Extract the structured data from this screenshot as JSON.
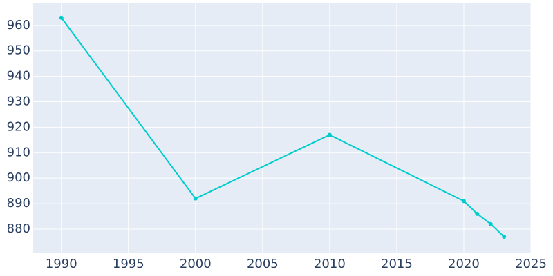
{
  "chart_data": {
    "type": "line",
    "x": [
      1990,
      2000,
      2010,
      2020,
      2021,
      2022,
      2023
    ],
    "series": [
      {
        "color": "#00cccc",
        "values": [
          963,
          892,
          917,
          891,
          886,
          882,
          877
        ]
      }
    ],
    "xlim": [
      1987.9,
      2025
    ],
    "xticks": [
      1990,
      1995,
      2000,
      2005,
      2010,
      2015,
      2020,
      2025
    ],
    "ylim": [
      870.5,
      968.9
    ],
    "yticks": [
      880,
      890,
      900,
      910,
      920,
      930,
      940,
      950,
      960
    ],
    "grid": true
  }
}
